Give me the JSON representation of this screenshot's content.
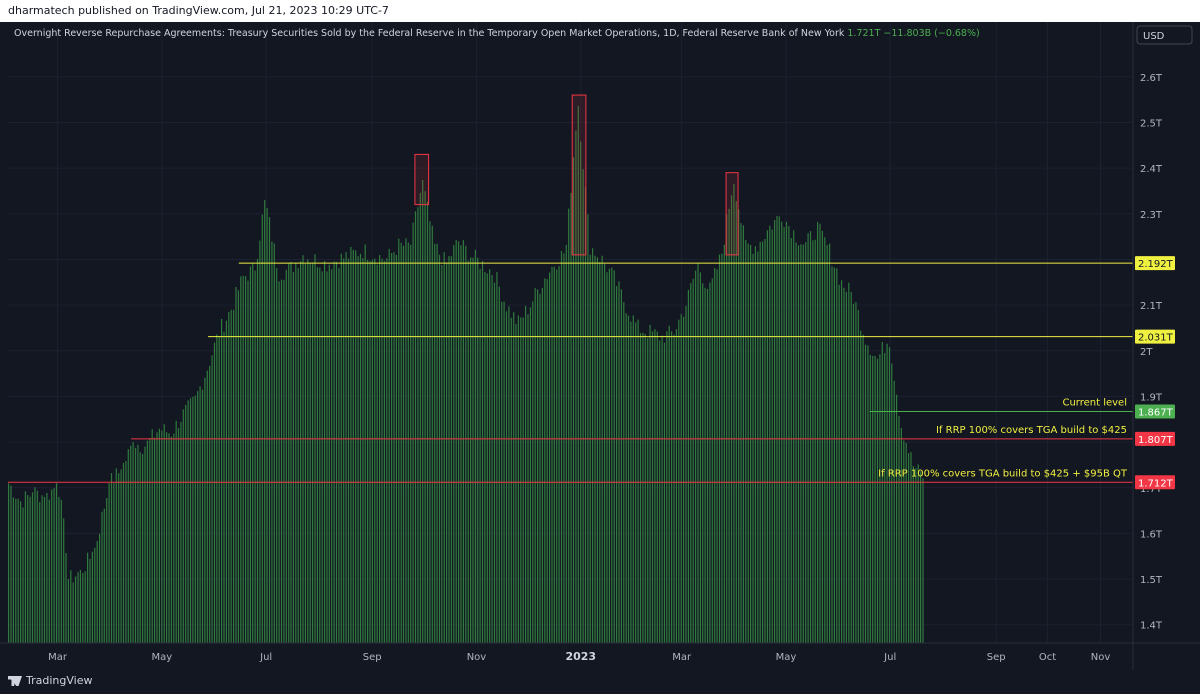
{
  "header": {
    "publisher": "dharmatech published on TradingView.com, Jul 21, 2023 10:29 UTC-7"
  },
  "legend": {
    "title": "Overnight Reverse Repurchase Agreements: Treasury Securities Sold by the Federal Reserve in the Temporary Open Market Operations, 1D, Federal Reserve Bank of New York",
    "value": "1.721T",
    "change": "−11.803B (−0.68%)"
  },
  "currency": "USD",
  "footer": {
    "logo_text": "TradingView"
  },
  "colors": {
    "bar": "#2f7a3d",
    "yellow": "#f0f040",
    "red": "#f23645",
    "green": "#4caf50",
    "bg": "#131722"
  },
  "chart_data": {
    "type": "bar",
    "y_ticks": [
      "2.6T",
      "2.5T",
      "2.4T",
      "2.3T",
      "2.2T",
      "2.1T",
      "2T",
      "1.9T",
      "1.8T",
      "1.7T",
      "1.6T",
      "1.5T",
      "1.4T"
    ],
    "y_tick_values": [
      2.6,
      2.5,
      2.4,
      2.3,
      2.2,
      2.1,
      2.0,
      1.9,
      1.8,
      1.7,
      1.6,
      1.5,
      1.4
    ],
    "ylim": [
      1.36,
      2.72
    ],
    "x_ticks": [
      "Mar",
      "May",
      "Jul",
      "Sep",
      "Nov",
      "2023",
      "Mar",
      "May",
      "Jul",
      "Sep",
      "Oct",
      "Nov"
    ],
    "x_tick_dates": [
      "2022-03-01",
      "2022-05-01",
      "2022-07-01",
      "2022-09-01",
      "2022-11-01",
      "2023-01-01",
      "2023-03-01",
      "2023-05-01",
      "2023-07-01",
      "2023-09-01",
      "2023-10-01",
      "2023-11-01"
    ],
    "x_range": [
      "2022-01-31",
      "2023-11-20"
    ],
    "series": [
      {
        "points": [
          [
            "2022-01-31",
            1.71
          ],
          [
            "2022-02-07",
            1.67
          ],
          [
            "2022-02-15",
            1.69
          ],
          [
            "2022-02-22",
            1.68
          ],
          [
            "2022-03-01",
            1.71
          ],
          [
            "2022-03-08",
            1.5
          ],
          [
            "2022-03-15",
            1.52
          ],
          [
            "2022-03-22",
            1.56
          ],
          [
            "2022-03-31",
            1.71
          ],
          [
            "2022-04-07",
            1.74
          ],
          [
            "2022-04-14",
            1.8
          ],
          [
            "2022-04-21",
            1.79
          ],
          [
            "2022-04-29",
            1.83
          ],
          [
            "2022-05-06",
            1.82
          ],
          [
            "2022-05-13",
            1.86
          ],
          [
            "2022-05-20",
            1.89
          ],
          [
            "2022-05-27",
            1.96
          ],
          [
            "2022-06-03",
            2.04
          ],
          [
            "2022-06-10",
            2.09
          ],
          [
            "2022-06-17",
            2.16
          ],
          [
            "2022-06-24",
            2.18
          ],
          [
            "2022-06-30",
            2.33
          ],
          [
            "2022-07-08",
            2.17
          ],
          [
            "2022-07-15",
            2.18
          ],
          [
            "2022-07-22",
            2.21
          ],
          [
            "2022-07-29",
            2.2
          ],
          [
            "2022-08-05",
            2.19
          ],
          [
            "2022-08-12",
            2.2
          ],
          [
            "2022-08-19",
            2.21
          ],
          [
            "2022-08-26",
            2.22
          ],
          [
            "2022-09-02",
            2.21
          ],
          [
            "2022-09-09",
            2.2
          ],
          [
            "2022-09-16",
            2.23
          ],
          [
            "2022-09-23",
            2.23
          ],
          [
            "2022-09-30",
            2.37
          ],
          [
            "2022-10-07",
            2.23
          ],
          [
            "2022-10-14",
            2.19
          ],
          [
            "2022-10-21",
            2.24
          ],
          [
            "2022-10-28",
            2.21
          ],
          [
            "2022-11-04",
            2.19
          ],
          [
            "2022-11-11",
            2.17
          ],
          [
            "2022-11-18",
            2.1
          ],
          [
            "2022-11-25",
            2.06
          ],
          [
            "2022-12-02",
            2.1
          ],
          [
            "2022-12-09",
            2.15
          ],
          [
            "2022-12-16",
            2.19
          ],
          [
            "2022-12-23",
            2.22
          ],
          [
            "2022-12-30",
            2.55
          ],
          [
            "2023-01-06",
            2.23
          ],
          [
            "2023-01-13",
            2.2
          ],
          [
            "2023-01-20",
            2.16
          ],
          [
            "2023-01-27",
            2.1
          ],
          [
            "2023-02-03",
            2.05
          ],
          [
            "2023-02-10",
            2.04
          ],
          [
            "2023-02-17",
            2.03
          ],
          [
            "2023-02-24",
            2.04
          ],
          [
            "2023-03-03",
            2.1
          ],
          [
            "2023-03-10",
            2.19
          ],
          [
            "2023-03-17",
            2.13
          ],
          [
            "2023-03-24",
            2.21
          ],
          [
            "2023-03-31",
            2.38
          ],
          [
            "2023-04-07",
            2.23
          ],
          [
            "2023-04-14",
            2.23
          ],
          [
            "2023-04-21",
            2.27
          ],
          [
            "2023-04-28",
            2.3
          ],
          [
            "2023-05-05",
            2.26
          ],
          [
            "2023-05-12",
            2.23
          ],
          [
            "2023-05-19",
            2.27
          ],
          [
            "2023-05-26",
            2.22
          ],
          [
            "2023-06-02",
            2.15
          ],
          [
            "2023-06-09",
            2.12
          ],
          [
            "2023-06-16",
            2.03
          ],
          [
            "2023-06-23",
            1.98
          ],
          [
            "2023-06-30",
            2.03
          ],
          [
            "2023-07-07",
            1.84
          ],
          [
            "2023-07-14",
            1.75
          ],
          [
            "2023-07-20",
            1.721
          ]
        ]
      }
    ],
    "annotations": {
      "hlines": [
        {
          "value": 2.192,
          "label": "2.192T",
          "color": "yellow",
          "start": "2022-06-15",
          "text": ""
        },
        {
          "value": 2.031,
          "label": "2.031T",
          "color": "yellow",
          "start": "2022-05-28",
          "text": ""
        },
        {
          "value": 1.867,
          "label": "1.867T",
          "color": "green",
          "start": "2023-06-19",
          "text": "Current level"
        },
        {
          "value": 1.807,
          "label": "1.807T",
          "color": "red",
          "start": "2022-04-13",
          "text": "If RRP 100% covers TGA build to $425"
        },
        {
          "value": 1.712,
          "label": "1.712T",
          "color": "red",
          "start": "2022-01-31",
          "text": "If RRP 100% covers TGA build to $425 + $95B QT"
        }
      ],
      "highlight_boxes": [
        {
          "from": "2022-09-26",
          "to": "2022-10-04",
          "low": 2.32,
          "high": 2.43
        },
        {
          "from": "2022-12-27",
          "to": "2023-01-04",
          "low": 2.21,
          "high": 2.56
        },
        {
          "from": "2023-03-27",
          "to": "2023-04-03",
          "low": 2.21,
          "high": 2.39
        }
      ]
    }
  }
}
